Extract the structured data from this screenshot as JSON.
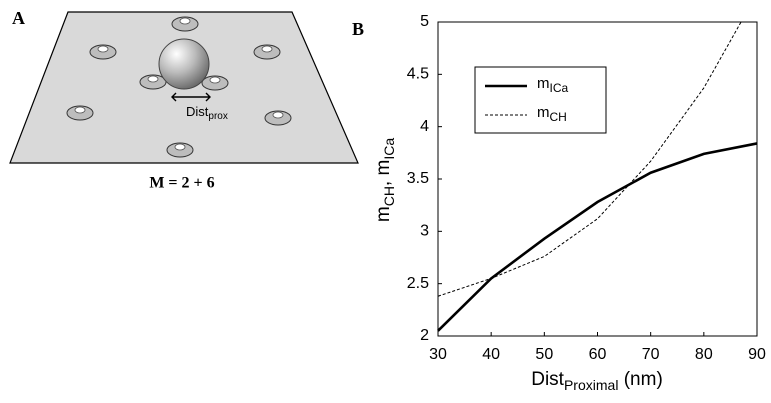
{
  "panel_a": {
    "label": "A",
    "caption": "M = 2 + 6",
    "distance_label": [
      "Dist",
      "prox"
    ]
  },
  "chart_data": {
    "type": "line",
    "label": "B",
    "xlabel": [
      "Dist",
      "Proximal",
      " (nm)"
    ],
    "ylabel": [
      "m",
      "CH",
      ", m",
      "ICa"
    ],
    "series": [
      {
        "name": [
          "m",
          "ICa"
        ],
        "color": "#000000",
        "style": "solid",
        "x": [
          30,
          40,
          50,
          60,
          70,
          80,
          90
        ],
        "values": [
          2.05,
          2.55,
          2.93,
          3.28,
          3.56,
          3.74,
          3.84
        ]
      },
      {
        "name": [
          "m",
          "CH"
        ],
        "color": "#000000",
        "style": "dashed",
        "x": [
          30,
          40,
          50,
          60,
          70,
          80,
          87
        ],
        "values": [
          2.38,
          2.55,
          2.76,
          3.12,
          3.67,
          4.37,
          5.0
        ]
      }
    ],
    "xlim": [
      30,
      90
    ],
    "xticks": [
      30,
      40,
      50,
      60,
      70,
      80,
      90
    ],
    "ylim": [
      2,
      5
    ],
    "yticks": [
      2,
      2.5,
      3,
      3.5,
      4,
      4.5,
      5
    ],
    "grid": false,
    "legend": "upper left"
  }
}
